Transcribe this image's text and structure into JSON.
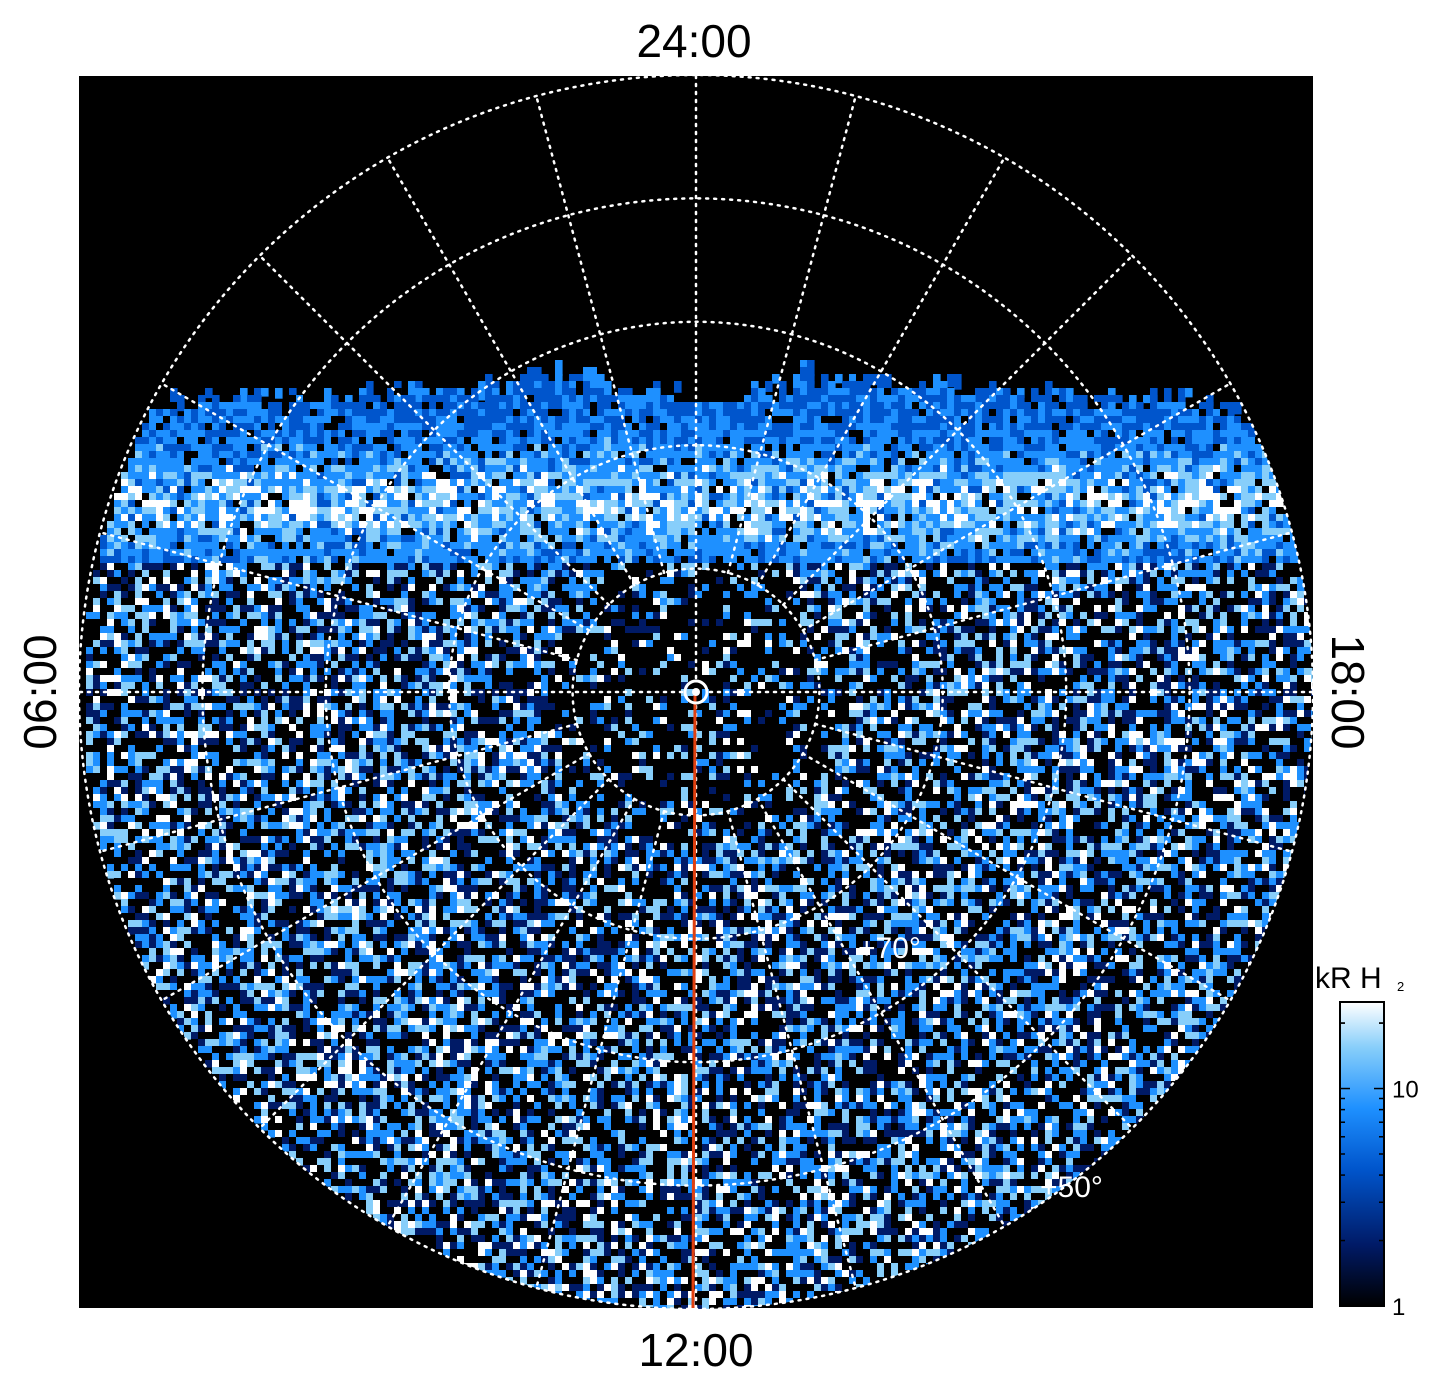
{
  "chart_data": {
    "type": "heatmap",
    "projection": "polar",
    "hemisphere_view": "north polar projection, local time around the edge",
    "local_time_labels": {
      "top": "24:00",
      "left": "06:00",
      "bottom": "12:00",
      "right": "18:00"
    },
    "latitude_labels": [
      "+70°",
      "+50°"
    ],
    "latitude_rings_deg": [
      90,
      80,
      70,
      60,
      50,
      40
    ],
    "meridian_spacing_hours": 1,
    "grid": "dotted white",
    "colorbar": {
      "title": "kR H",
      "title_subscript": "2",
      "scale": "log",
      "range": [
        1,
        25
      ],
      "ticks": [
        {
          "value": 10,
          "label": "10"
        },
        {
          "value": 1,
          "label": "1"
        }
      ],
      "colormap": [
        "#000000",
        "#001a66",
        "#0055cc",
        "#1e90ff",
        "#87cefa",
        "#ffffff"
      ]
    },
    "features": {
      "reference_meridian_color": "#e04010",
      "reference_meridian_local_time": "12:00",
      "pole_marker": "circle",
      "main_oval": "bright blue/white band at high latitude on the nightside (top of disk)",
      "dayside": "noisy low-intensity emission"
    },
    "colors": {
      "background": "#000000",
      "grid": "#ffffff",
      "label_text": "#000000"
    }
  }
}
